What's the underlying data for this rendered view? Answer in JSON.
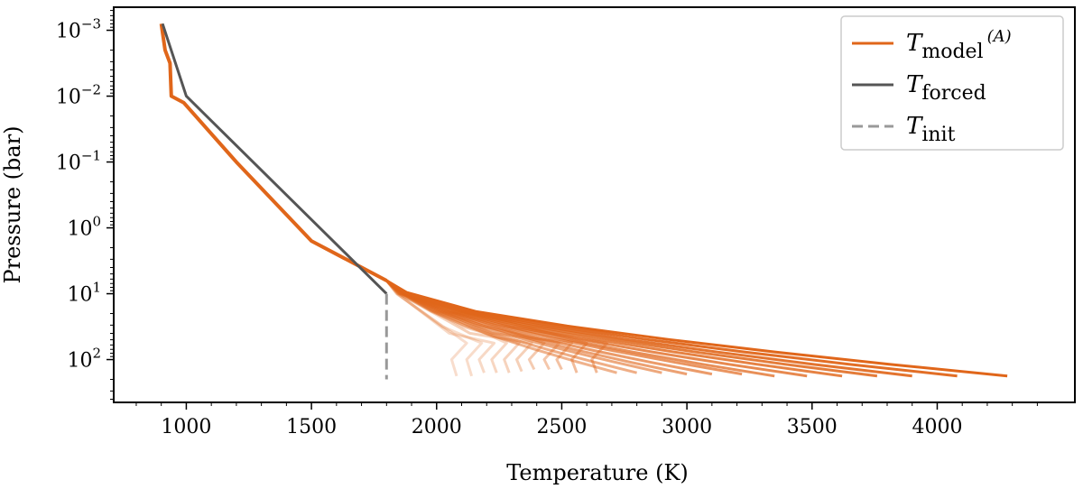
{
  "chart_data": {
    "type": "line",
    "xlabel": "Temperature (K)",
    "ylabel": "Pressure (bar)",
    "xlim": [
      710,
      4550
    ],
    "ylim_log10": [
      -3.35,
      2.65
    ],
    "yscale": "log",
    "y_inverted": true,
    "x_ticks": [
      1000,
      1500,
      2000,
      2500,
      3000,
      3500,
      4000
    ],
    "x_tick_labels": [
      "1000",
      "1500",
      "2000",
      "2500",
      "3000",
      "3500",
      "4000"
    ],
    "y_ticks_log10": [
      -3,
      -2,
      -1,
      0,
      1,
      2
    ],
    "y_tick_base": "10",
    "y_tick_exponents": [
      "−3",
      "−2",
      "−1",
      "0",
      "1",
      "2"
    ],
    "legend": {
      "placement": "top-right",
      "entries": [
        {
          "symbol": "T",
          "subscript": "model",
          "superscript": "(A)",
          "color": "#e0661a",
          "style": "solid"
        },
        {
          "symbol": "T",
          "subscript": "forced",
          "color": "#555555",
          "style": "solid"
        },
        {
          "symbol": "T",
          "subscript": "init",
          "color": "#999999",
          "style": "dashed"
        }
      ]
    },
    "colors": {
      "model": "#e0661a",
      "forced": "#555555",
      "init": "#999999"
    },
    "series": [
      {
        "name": "T_forced",
        "x": [
          905,
          1000,
          1800
        ],
        "log10_p": [
          -3.1,
          -2.0,
          1.0
        ]
      },
      {
        "name": "T_init",
        "x": [
          1800,
          1800
        ],
        "log10_p": [
          1.0,
          2.3
        ]
      }
    ],
    "model_upper": {
      "x": [
        900,
        915,
        935,
        940,
        990,
        1200,
        1500,
        1800
      ],
      "log10_p": [
        -3.1,
        -2.7,
        -2.5,
        -2.0,
        -1.9,
        -1.0,
        0.2,
        0.8
      ]
    },
    "model_iterations": {
      "count": 24,
      "tip_x": [
        2080,
        2140,
        2190,
        2240,
        2290,
        2340,
        2390,
        2450,
        2500,
        2560,
        2640,
        2720,
        2800,
        2900,
        3000,
        3100,
        3220,
        3350,
        3480,
        3620,
        3760,
        3900,
        4080,
        4280
      ],
      "tip_log10_p": [
        2.25,
        2.25,
        2.2,
        2.2,
        2.2,
        2.18,
        2.15,
        2.15,
        2.15,
        2.2,
        2.2,
        2.2,
        2.2,
        2.2,
        2.22,
        2.22,
        2.22,
        2.25,
        2.25,
        2.25,
        2.25,
        2.25,
        2.25,
        2.25
      ]
    }
  }
}
